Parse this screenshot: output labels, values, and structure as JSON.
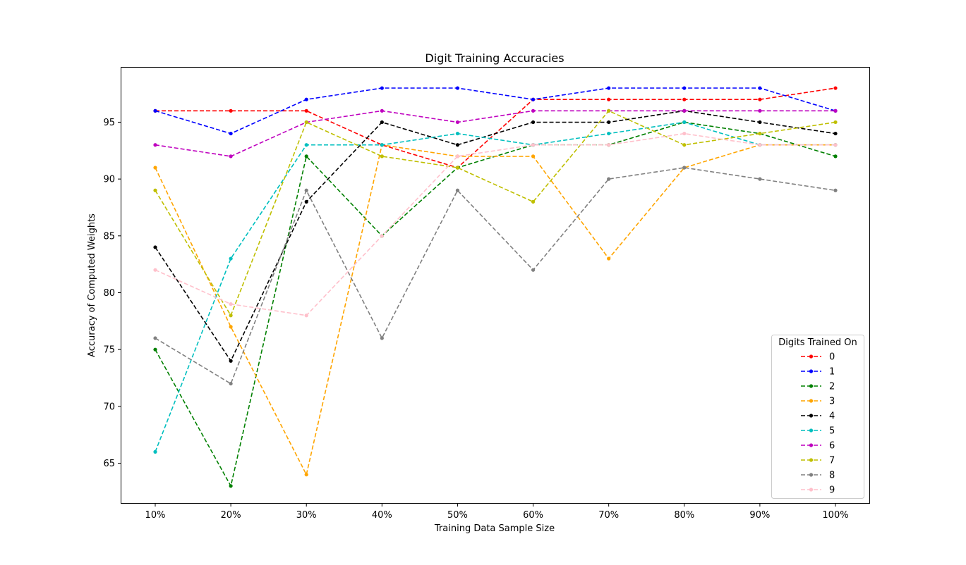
{
  "chart_data": {
    "type": "line",
    "title": "Digit Training Accuracies",
    "xlabel": "Training Data Sample Size",
    "ylabel": "Accuracy of Computed Weights",
    "categories": [
      "10%",
      "20%",
      "30%",
      "40%",
      "50%",
      "60%",
      "70%",
      "80%",
      "90%",
      "100%"
    ],
    "ylim": [
      61.5,
      99.8
    ],
    "yticks": [
      65,
      70,
      75,
      80,
      85,
      90,
      95
    ],
    "grid": false,
    "line_style": "dashed",
    "marker": "dot",
    "legend": {
      "title": "Digits Trained On",
      "placement": "bottom-right"
    },
    "series": [
      {
        "name": "0",
        "color": "#ff0000",
        "values": [
          96,
          96,
          96,
          93,
          91,
          97,
          97,
          97,
          97,
          98
        ]
      },
      {
        "name": "1",
        "color": "#0000ff",
        "values": [
          96,
          94,
          97,
          98,
          98,
          97,
          98,
          98,
          98,
          96
        ]
      },
      {
        "name": "2",
        "color": "#008000",
        "values": [
          75,
          63,
          92,
          85,
          91,
          93,
          93,
          95,
          94,
          92
        ]
      },
      {
        "name": "3",
        "color": "#ffa500",
        "values": [
          91,
          77,
          64,
          93,
          92,
          92,
          83,
          91,
          93,
          93
        ]
      },
      {
        "name": "4",
        "color": "#000000",
        "values": [
          84,
          74,
          88,
          95,
          93,
          95,
          95,
          96,
          95,
          94
        ]
      },
      {
        "name": "5",
        "color": "#00bfbf",
        "values": [
          66,
          83,
          93,
          93,
          94,
          93,
          94,
          95,
          93,
          93
        ]
      },
      {
        "name": "6",
        "color": "#bf00bf",
        "values": [
          93,
          92,
          95,
          96,
          95,
          96,
          96,
          96,
          96,
          96
        ]
      },
      {
        "name": "7",
        "color": "#bfbf00",
        "values": [
          89,
          78,
          95,
          92,
          91,
          88,
          96,
          93,
          94,
          95
        ]
      },
      {
        "name": "8",
        "color": "#808080",
        "values": [
          76,
          72,
          89,
          76,
          89,
          82,
          90,
          91,
          90,
          89
        ]
      },
      {
        "name": "9",
        "color": "#ffc0cb",
        "values": [
          82,
          79,
          78,
          85,
          92,
          93,
          93,
          94,
          93,
          93
        ]
      }
    ]
  }
}
